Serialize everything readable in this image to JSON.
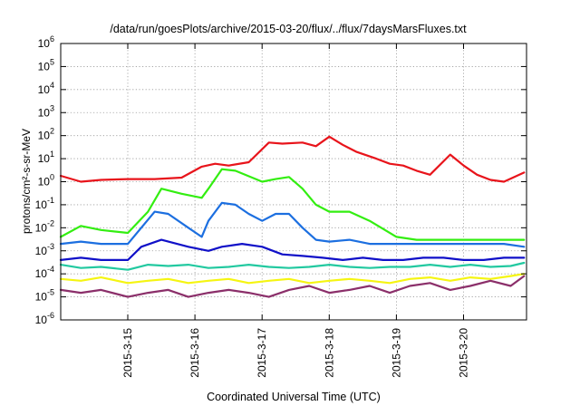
{
  "chart_data": {
    "type": "line",
    "title": "/data/run/goesPlots/archive/2015-03-20/flux/../flux/7daysMarsFluxes.txt",
    "xlabel": "Coordinated Universal Time (UTC)",
    "ylabel": "protons/cm²-s-sr-MeV",
    "y_scale": "log",
    "ylim": [
      1e-06,
      1000000.0
    ],
    "xlim": [
      "2015-03-14 03:00",
      "2015-03-20 23:00"
    ],
    "y_ticks": [
      {
        "base": "10",
        "exp": "-6"
      },
      {
        "base": "10",
        "exp": "-5"
      },
      {
        "base": "10",
        "exp": "-4"
      },
      {
        "base": "10",
        "exp": "-3"
      },
      {
        "base": "10",
        "exp": "-2"
      },
      {
        "base": "10",
        "exp": "-1"
      },
      {
        "base": "10",
        "exp": "0"
      },
      {
        "base": "10",
        "exp": "1"
      },
      {
        "base": "10",
        "exp": "2"
      },
      {
        "base": "10",
        "exp": "3"
      },
      {
        "base": "10",
        "exp": "4"
      },
      {
        "base": "10",
        "exp": "5"
      },
      {
        "base": "10",
        "exp": "6"
      }
    ],
    "x_ticks": [
      "2015-3-15",
      "2015-3-16",
      "2015-3-17",
      "2015-3-18",
      "2015-3-19",
      "2015-3-20"
    ],
    "grid": true,
    "legend": "none",
    "series": [
      {
        "color": "#e8141b",
        "x_days": [
          0,
          0.3,
          0.6,
          1,
          1.4,
          1.8,
          2.1,
          2.3,
          2.5,
          2.8,
          3.1,
          3.3,
          3.6,
          3.8,
          4,
          4.2,
          4.4,
          4.7,
          4.9,
          5.1,
          5.3,
          5.5,
          5.8,
          6,
          6.2,
          6.4,
          6.6,
          6.9
        ],
        "y": [
          1.8,
          1.0,
          1.2,
          1.3,
          1.3,
          1.5,
          4.5,
          6,
          5,
          7,
          50,
          45,
          50,
          35,
          90,
          40,
          20,
          10,
          6,
          5,
          3,
          2,
          15,
          5,
          2,
          1.2,
          1.0,
          2.5
        ]
      },
      {
        "color": "#33ee11",
        "x_days": [
          0,
          0.3,
          0.6,
          1,
          1.3,
          1.5,
          1.8,
          2.1,
          2.2,
          2.4,
          2.6,
          3,
          3.2,
          3.4,
          3.6,
          3.8,
          4,
          4.3,
          4.6,
          5,
          5.3,
          5.6,
          6,
          6.3,
          6.6,
          6.9
        ],
        "y": [
          0.004,
          0.012,
          0.008,
          0.006,
          0.05,
          0.5,
          0.3,
          0.2,
          0.5,
          3.5,
          3,
          1,
          1.3,
          1.6,
          0.5,
          0.1,
          0.05,
          0.05,
          0.02,
          0.004,
          0.003,
          0.003,
          0.003,
          0.003,
          0.003,
          0.003
        ]
      },
      {
        "color": "#1c6fe0",
        "x_days": [
          0,
          0.3,
          0.6,
          1,
          1.2,
          1.4,
          1.6,
          1.9,
          2.1,
          2.2,
          2.4,
          2.6,
          2.8,
          3,
          3.2,
          3.4,
          3.6,
          3.8,
          4,
          4.3,
          4.6,
          5,
          5.3,
          5.6,
          6,
          6.3,
          6.6,
          6.9
        ],
        "y": [
          0.002,
          0.0025,
          0.002,
          0.002,
          0.01,
          0.05,
          0.04,
          0.01,
          0.004,
          0.02,
          0.12,
          0.1,
          0.04,
          0.02,
          0.04,
          0.04,
          0.01,
          0.003,
          0.0025,
          0.003,
          0.002,
          0.002,
          0.002,
          0.002,
          0.002,
          0.002,
          0.002,
          0.0015
        ]
      },
      {
        "color": "#1010c8",
        "x_days": [
          0,
          0.3,
          0.6,
          1,
          1.2,
          1.5,
          1.9,
          2.2,
          2.4,
          2.7,
          3,
          3.3,
          3.6,
          3.9,
          4.2,
          4.5,
          4.8,
          5.1,
          5.4,
          5.7,
          6,
          6.3,
          6.6,
          6.9
        ],
        "y": [
          0.0004,
          0.0005,
          0.0004,
          0.0004,
          0.0015,
          0.003,
          0.0015,
          0.001,
          0.0015,
          0.002,
          0.0015,
          0.0007,
          0.0006,
          0.0005,
          0.0004,
          0.0005,
          0.0004,
          0.0004,
          0.0005,
          0.0005,
          0.0004,
          0.0004,
          0.0005,
          0.0005
        ]
      },
      {
        "color": "#22c9a0",
        "x_days": [
          0,
          0.3,
          0.6,
          1,
          1.3,
          1.6,
          1.9,
          2.2,
          2.5,
          2.8,
          3.1,
          3.4,
          3.7,
          4,
          4.3,
          4.6,
          4.9,
          5.2,
          5.5,
          5.8,
          6.1,
          6.4,
          6.7,
          6.9
        ],
        "y": [
          0.00025,
          0.00018,
          0.0002,
          0.00015,
          0.00025,
          0.00022,
          0.00025,
          0.00018,
          0.0002,
          0.00025,
          0.0002,
          0.00018,
          0.0002,
          0.00025,
          0.0002,
          0.00018,
          0.0002,
          0.0002,
          0.00025,
          0.0002,
          0.00025,
          0.0002,
          0.00022,
          0.0003
        ]
      },
      {
        "color": "#f5f512",
        "x_days": [
          0,
          0.3,
          0.6,
          1,
          1.3,
          1.6,
          1.9,
          2.2,
          2.5,
          2.8,
          3.1,
          3.4,
          3.7,
          4,
          4.3,
          4.6,
          4.9,
          5.2,
          5.5,
          5.8,
          6.1,
          6.4,
          6.7,
          6.9
        ],
        "y": [
          6e-05,
          5e-05,
          7e-05,
          4e-05,
          5e-05,
          6e-05,
          4e-05,
          5e-05,
          6e-05,
          4e-05,
          5e-05,
          6e-05,
          4e-05,
          5e-05,
          6e-05,
          5e-05,
          4e-05,
          6e-05,
          7e-05,
          5e-05,
          7e-05,
          6e-05,
          8e-05,
          0.0001
        ]
      },
      {
        "color": "#8b2f6a",
        "x_days": [
          0,
          0.3,
          0.6,
          1,
          1.3,
          1.6,
          1.9,
          2.2,
          2.5,
          2.8,
          3.1,
          3.4,
          3.7,
          4,
          4.3,
          4.6,
          4.9,
          5.2,
          5.5,
          5.8,
          6.1,
          6.4,
          6.7,
          6.9
        ],
        "y": [
          2e-05,
          1.5e-05,
          2e-05,
          1e-05,
          1.5e-05,
          2e-05,
          1e-05,
          1.5e-05,
          2e-05,
          1.5e-05,
          1e-05,
          2e-05,
          3e-05,
          1.5e-05,
          2e-05,
          3e-05,
          1.5e-05,
          3e-05,
          4e-05,
          2e-05,
          3e-05,
          5e-05,
          3e-05,
          8e-05
        ]
      }
    ]
  }
}
